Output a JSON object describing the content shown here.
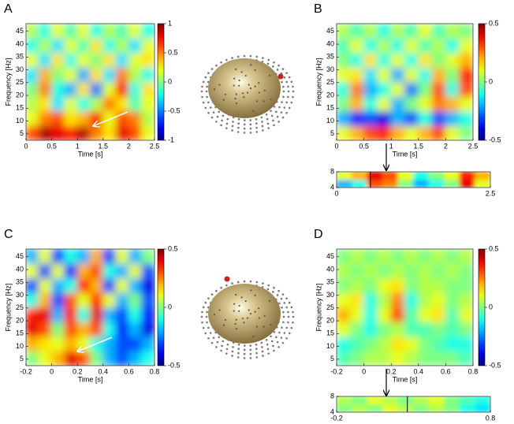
{
  "chart_data": [
    {
      "type": "heatmap",
      "panel": "A",
      "xlabel": "Time [s]",
      "ylabel": "Frequency [Hz]",
      "xlim": [
        0,
        2.5
      ],
      "xticks": [
        0,
        0.5,
        1,
        1.5,
        2,
        2.5
      ],
      "ylim": [
        2.5,
        48
      ],
      "yticks": [
        5,
        10,
        15,
        20,
        25,
        30,
        35,
        40,
        45
      ],
      "zlim": [
        -1,
        1
      ],
      "zticks": [
        -1,
        -0.5,
        0,
        0.5,
        1
      ],
      "colormap": "jet",
      "values": [
        [
          0.6,
          0.9,
          0.8,
          0.7,
          0.9,
          0.5,
          0.3,
          0.8,
          0.6,
          0.2
        ],
        [
          0.2,
          0.5,
          0.6,
          0.3,
          0.4,
          0.7,
          0.2,
          0.6,
          0.5,
          0.1
        ],
        [
          0.1,
          0.3,
          -0.3,
          0.2,
          -0.2,
          0.1,
          0.5,
          0.3,
          -0.1,
          0.2
        ],
        [
          0.0,
          0.5,
          -0.2,
          -0.4,
          0.3,
          -0.5,
          0.2,
          0.7,
          -0.2,
          0.3
        ],
        [
          -0.3,
          0.4,
          0.0,
          0.2,
          -0.4,
          0.3,
          -0.3,
          0.5,
          0.1,
          -0.2
        ],
        [
          0.2,
          -0.3,
          0.3,
          -0.2,
          0.2,
          0.0,
          0.3,
          -0.3,
          0.2,
          0.3
        ],
        [
          -0.2,
          0.1,
          -0.3,
          0.2,
          -0.1,
          0.3,
          -0.2,
          0.1,
          -0.3,
          0.2
        ],
        [
          0.1,
          -0.2,
          0.2,
          -0.1,
          0.2,
          -0.2,
          0.1,
          -0.1,
          0.2,
          -0.2
        ]
      ]
    },
    {
      "type": "heatmap",
      "panel": "B",
      "xlabel": "Time [s]",
      "ylabel": "Frequency [Hz]",
      "xlim": [
        0,
        2.5
      ],
      "xticks": [
        0,
        0.5,
        1,
        1.5,
        2,
        2.5
      ],
      "ylim": [
        2.5,
        48
      ],
      "yticks": [
        5,
        10,
        15,
        20,
        25,
        30,
        35,
        40,
        45
      ],
      "zlim": [
        -0.5,
        0.5
      ],
      "zticks": [
        -0.5,
        0,
        0.5
      ],
      "colormap": "jet",
      "values": [
        [
          0.1,
          0.2,
          0.3,
          0.35,
          0.2,
          0.1,
          0.2,
          0.3,
          0.1,
          0.0
        ],
        [
          -0.2,
          -0.35,
          -0.3,
          -0.4,
          -0.2,
          -0.3,
          -0.1,
          -0.3,
          -0.2,
          -0.1
        ],
        [
          0.0,
          0.2,
          -0.1,
          0.1,
          -0.2,
          0.0,
          0.1,
          0.25,
          0.2,
          0.1
        ],
        [
          -0.1,
          0.25,
          -0.2,
          -0.1,
          0.1,
          -0.25,
          0.0,
          0.3,
          -0.1,
          0.3
        ],
        [
          0.1,
          0.15,
          -0.15,
          0.1,
          -0.2,
          0.1,
          -0.1,
          0.2,
          0.0,
          0.35
        ],
        [
          0.0,
          -0.1,
          0.15,
          -0.1,
          0.1,
          -0.1,
          0.15,
          0.0,
          0.1,
          0.2
        ],
        [
          -0.05,
          0.1,
          -0.1,
          0.05,
          -0.1,
          0.1,
          -0.05,
          0.05,
          -0.1,
          0.1
        ],
        [
          0.05,
          -0.05,
          0.05,
          -0.1,
          0.05,
          -0.05,
          0.1,
          -0.05,
          0.05,
          0.0
        ]
      ]
    },
    {
      "type": "heatmap",
      "xlim": [
        0,
        2.5
      ],
      "xticks": [
        0,
        2.5
      ],
      "ylim": [
        4,
        8
      ],
      "yticks": [
        4,
        8
      ],
      "zlim": [
        -0.5,
        0.5
      ],
      "colormap": "jet",
      "marker_x": 0.55,
      "values": [
        [
          -0.2,
          -0.1,
          0.3,
          0.25,
          0.0,
          -0.2,
          -0.1,
          0.0,
          0.4,
          0.1
        ],
        [
          0.1,
          0.2,
          0.4,
          0.3,
          0.1,
          -0.1,
          0.0,
          0.1,
          0.35,
          0.2
        ]
      ]
    },
    {
      "type": "heatmap",
      "panel": "C",
      "xlabel": "Time [s]",
      "ylabel": "Frequency [Hz]",
      "xlim": [
        -0.2,
        0.8
      ],
      "xticks": [
        -0.2,
        0,
        0.2,
        0.4,
        0.6,
        0.8
      ],
      "ylim": [
        2.5,
        48
      ],
      "yticks": [
        5,
        10,
        15,
        20,
        25,
        30,
        35,
        40,
        45
      ],
      "zlim": [
        -0.5,
        0.5
      ],
      "zticks": [
        -0.5,
        0,
        0.5
      ],
      "colormap": "jet",
      "values": [
        [
          0.0,
          0.1,
          0.2,
          0.4,
          0.3,
          0.0,
          -0.2,
          -0.3,
          -0.2,
          -0.1
        ],
        [
          0.2,
          0.15,
          0.1,
          0.2,
          0.1,
          -0.1,
          -0.2,
          -0.3,
          -0.3,
          -0.2
        ],
        [
          0.4,
          0.3,
          0.0,
          0.3,
          0.2,
          0.3,
          -0.1,
          -0.35,
          -0.2,
          -0.4
        ],
        [
          0.35,
          0.4,
          -0.2,
          0.35,
          -0.1,
          0.4,
          -0.2,
          -0.3,
          -0.1,
          -0.35
        ],
        [
          -0.1,
          0.2,
          -0.3,
          0.3,
          0.1,
          0.35,
          0.1,
          -0.2,
          0.0,
          -0.3
        ],
        [
          -0.3,
          0.1,
          -0.2,
          -0.1,
          0.35,
          0.2,
          -0.3,
          0.1,
          -0.2,
          -0.4
        ],
        [
          0.1,
          -0.3,
          0.1,
          -0.35,
          0.2,
          0.3,
          -0.1,
          -0.2,
          0.1,
          -0.3
        ],
        [
          -0.2,
          0.1,
          -0.3,
          -0.1,
          -0.2,
          0.2,
          -0.3,
          0.1,
          -0.2,
          0.0
        ]
      ]
    },
    {
      "type": "heatmap",
      "panel": "D",
      "xlabel": "Time [s]",
      "ylabel": "Frequency [Hz]",
      "xlim": [
        -0.2,
        0.8
      ],
      "xticks": [
        -0.2,
        0,
        0.2,
        0.4,
        0.6,
        0.8
      ],
      "ylim": [
        2.5,
        48
      ],
      "yticks": [
        5,
        10,
        15,
        20,
        25,
        30,
        35,
        40,
        45
      ],
      "zlim": [
        -0.5,
        0.5
      ],
      "zticks": [
        -0.5,
        0,
        0.5
      ],
      "colormap": "jet",
      "values": [
        [
          -0.05,
          0.0,
          0.05,
          0.05,
          0.1,
          0.05,
          0.0,
          0.0,
          0.0,
          -0.05
        ],
        [
          -0.1,
          -0.05,
          0.0,
          0.05,
          0.15,
          0.1,
          0.0,
          -0.05,
          -0.1,
          -0.1
        ],
        [
          0.1,
          0.0,
          -0.1,
          0.0,
          0.05,
          -0.05,
          -0.05,
          0.0,
          -0.05,
          0.0
        ],
        [
          0.2,
          0.1,
          -0.1,
          0.1,
          0.3,
          -0.05,
          0.1,
          0.15,
          -0.05,
          0.1
        ],
        [
          0.1,
          0.15,
          -0.1,
          0.05,
          0.25,
          -0.1,
          0.05,
          0.1,
          0.0,
          0.05
        ],
        [
          0.0,
          0.05,
          0.0,
          0.1,
          0.15,
          0.0,
          0.05,
          0.05,
          0.0,
          0.0
        ],
        [
          0.05,
          0.0,
          0.05,
          0.0,
          0.05,
          0.0,
          0.05,
          0.0,
          0.05,
          0.0
        ],
        [
          0.0,
          0.05,
          0.0,
          0.05,
          0.0,
          0.05,
          0.0,
          0.05,
          0.0,
          0.05
        ]
      ]
    },
    {
      "type": "heatmap",
      "xlim": [
        -0.2,
        0.8
      ],
      "xticks": [
        -0.2,
        0.8
      ],
      "ylim": [
        4,
        8
      ],
      "yticks": [
        4,
        8
      ],
      "zlim": [
        -0.5,
        0.5
      ],
      "colormap": "jet",
      "marker_x": 0.26,
      "values": [
        [
          0.0,
          0.05,
          0.0,
          0.1,
          0.05,
          0.0,
          0.05,
          0.0,
          -0.1,
          -0.15
        ],
        [
          0.05,
          0.0,
          0.1,
          0.05,
          0.0,
          0.05,
          0.1,
          0.0,
          -0.05,
          -0.1
        ]
      ]
    }
  ]
}
